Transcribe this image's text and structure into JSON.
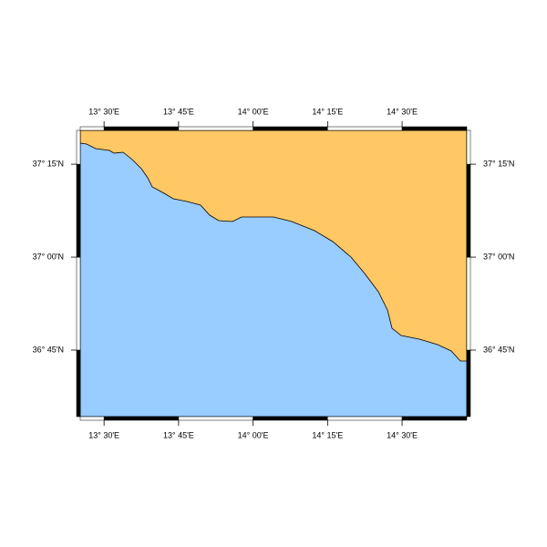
{
  "map": {
    "xlim": [
      13.42,
      14.717
    ],
    "ylim": [
      36.571,
      37.341
    ],
    "xticks": [
      {
        "value": 13.5,
        "label": "13° 30'E"
      },
      {
        "value": 13.75,
        "label": "13° 45'E"
      },
      {
        "value": 14.0,
        "label": "14° 00'E"
      },
      {
        "value": 14.25,
        "label": "14° 15'E"
      },
      {
        "value": 14.5,
        "label": "14° 30'E"
      }
    ],
    "yticks": [
      {
        "value": 36.75,
        "label": "36° 45'N"
      },
      {
        "value": 37.0,
        "label": "37° 00'N"
      },
      {
        "value": 37.25,
        "label": "37° 15'N"
      }
    ]
  }
}
